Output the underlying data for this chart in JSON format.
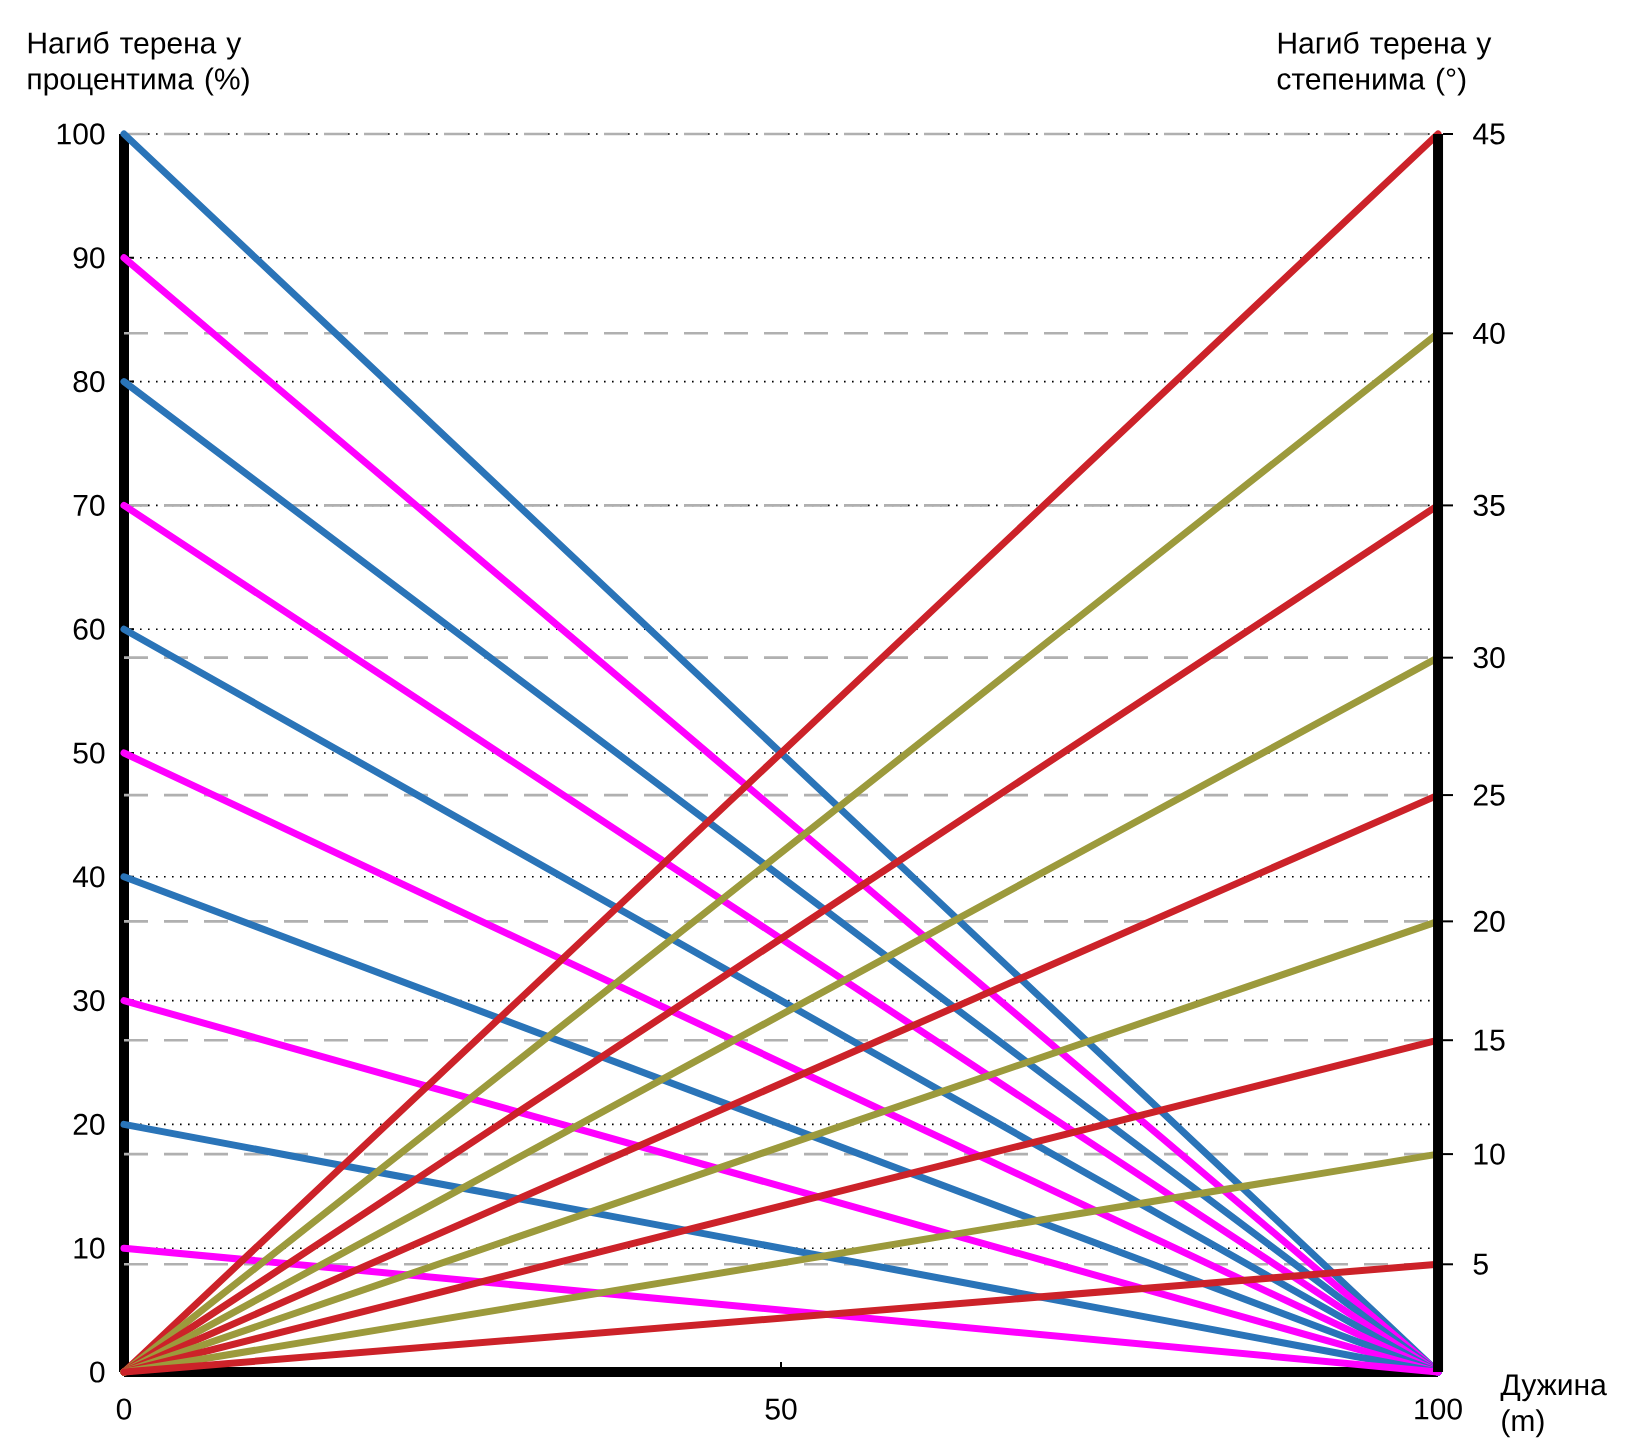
{
  "chart_data": {
    "type": "line",
    "xlabel": "Дужина (m)",
    "ylabel": "Нагиб терена у процентима (%)",
    "y2label": "Нагиб терена у степенима (°)",
    "xlim": [
      0,
      100
    ],
    "xticks": [
      0,
      50,
      100
    ],
    "ylim": [
      0,
      100
    ],
    "yticks": [
      0,
      10,
      20,
      30,
      40,
      50,
      60,
      70,
      80,
      90,
      100
    ],
    "grid": "y",
    "ref_lines": [
      {
        "axis": "y",
        "value": 8.7,
        "color": "#b0b0b0",
        "line_style": "dashed"
      },
      {
        "axis": "y",
        "value": 17.6,
        "color": "#b0b0b0",
        "line_style": "dashed"
      },
      {
        "axis": "y",
        "value": 26.8,
        "color": "#b0b0b0",
        "line_style": "dashed"
      },
      {
        "axis": "y",
        "value": 36.4,
        "color": "#b0b0b0",
        "line_style": "dashed"
      },
      {
        "axis": "y",
        "value": 46.6,
        "color": "#b0b0b0",
        "line_style": "dashed"
      },
      {
        "axis": "y",
        "value": 57.7,
        "color": "#b0b0b0",
        "line_style": "dashed"
      },
      {
        "axis": "y",
        "value": 70,
        "color": "#b0b0b0",
        "line_style": "dashed"
      },
      {
        "axis": "y",
        "value": 83.9,
        "color": "#b0b0b0",
        "line_style": "dashed"
      },
      {
        "axis": "y",
        "value": 100,
        "color": "#b0b0b0",
        "line_style": "dashed"
      }
    ],
    "annotations": [
      "5",
      "10",
      "15",
      "20",
      "25",
      "30",
      "35",
      "40",
      "45"
    ],
    "x": [
      0,
      100
    ],
    "series": [
      {
        "color": "#2a74b8",
        "values": [
          100,
          0
        ]
      },
      {
        "color": "#ff00ff",
        "values": [
          90,
          0
        ]
      },
      {
        "color": "#2a74b8",
        "values": [
          80,
          0
        ]
      },
      {
        "color": "#ff00ff",
        "values": [
          70,
          0
        ]
      },
      {
        "color": "#2a74b8",
        "values": [
          60,
          0
        ]
      },
      {
        "color": "#ff00ff",
        "values": [
          50,
          0
        ]
      },
      {
        "color": "#2a74b8",
        "values": [
          40,
          0
        ]
      },
      {
        "color": "#ff00ff",
        "values": [
          30,
          0
        ]
      },
      {
        "color": "#2a74b8",
        "values": [
          20,
          0
        ]
      },
      {
        "color": "#ff00ff",
        "values": [
          10,
          0
        ]
      },
      {
        "color": "#cc2229",
        "values": [
          0,
          100
        ]
      },
      {
        "color": "#9c9a3c",
        "values": [
          0,
          83.9
        ]
      },
      {
        "color": "#cc2229",
        "values": [
          0,
          70
        ]
      },
      {
        "color": "#9c9a3c",
        "values": [
          0,
          57.7
        ]
      },
      {
        "color": "#cc2229",
        "values": [
          0,
          46.6
        ]
      },
      {
        "color": "#9c9a3c",
        "values": [
          0,
          36.4
        ]
      },
      {
        "color": "#cc2229",
        "values": [
          0,
          26.8
        ]
      },
      {
        "color": "#9c9a3c",
        "values": [
          0,
          17.6
        ]
      },
      {
        "color": "#cc2229",
        "values": [
          0,
          8.7
        ]
      }
    ]
  }
}
